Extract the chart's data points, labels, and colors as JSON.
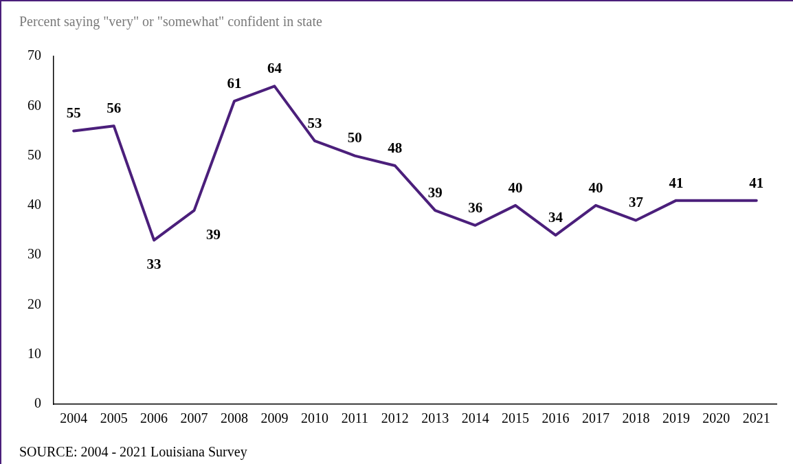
{
  "chart_data": {
    "type": "line",
    "title": "Percent saying \"very\" or \"somewhat\" confident in state",
    "categories": [
      "2004",
      "2005",
      "2006",
      "2007",
      "2008",
      "2009",
      "2010",
      "2011",
      "2012",
      "2013",
      "2014",
      "2015",
      "2016",
      "2017",
      "2018",
      "2019",
      "2020",
      "2021"
    ],
    "series": [
      {
        "color": "#4b1f7b",
        "values": [
          55,
          56,
          33,
          39,
          61,
          64,
          53,
          50,
          48,
          39,
          36,
          40,
          34,
          40,
          37,
          41,
          null,
          41
        ]
      }
    ],
    "ylim": [
      0,
      70
    ],
    "yticks": [
      0,
      10,
      20,
      30,
      40,
      50,
      60,
      70
    ],
    "grid": false,
    "legend": false,
    "marker": "none",
    "line_style": "solid",
    "data_labels": true,
    "annotations": [
      "SOURCE: 2004 - 2021 Louisiana Survey"
    ]
  }
}
